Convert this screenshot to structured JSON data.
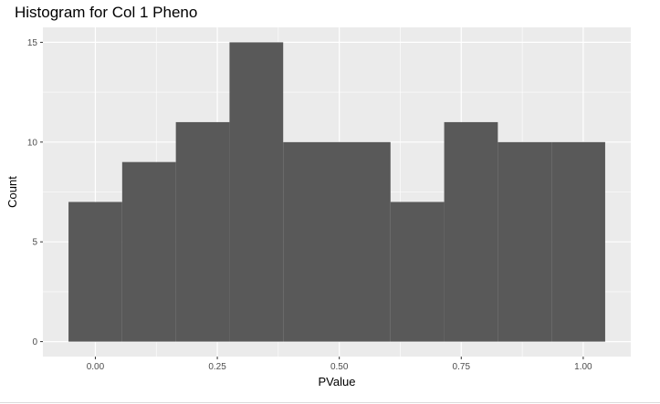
{
  "chart_data": {
    "type": "bar",
    "subtype": "histogram",
    "title": "Histogram for Col 1 Pheno",
    "xlabel": "PValue",
    "ylabel": "Count",
    "bins": [
      {
        "start": -0.055,
        "end": 0.055,
        "count": 7
      },
      {
        "start": 0.055,
        "end": 0.165,
        "count": 9
      },
      {
        "start": 0.165,
        "end": 0.275,
        "count": 11
      },
      {
        "start": 0.275,
        "end": 0.385,
        "count": 15
      },
      {
        "start": 0.385,
        "end": 0.495,
        "count": 10
      },
      {
        "start": 0.495,
        "end": 0.605,
        "count": 10
      },
      {
        "start": 0.605,
        "end": 0.715,
        "count": 7
      },
      {
        "start": 0.715,
        "end": 0.825,
        "count": 11
      },
      {
        "start": 0.825,
        "end": 0.935,
        "count": 10
      },
      {
        "start": 0.935,
        "end": 1.045,
        "count": 10
      }
    ],
    "xlim": [
      -0.1075,
      1.0975
    ],
    "ylim": [
      -0.75,
      15.75
    ],
    "x_ticks": [
      {
        "value": 0.0,
        "label": "0.00"
      },
      {
        "value": 0.25,
        "label": "0.25"
      },
      {
        "value": 0.5,
        "label": "0.50"
      },
      {
        "value": 0.75,
        "label": "0.75"
      },
      {
        "value": 1.0,
        "label": "1.00"
      }
    ],
    "y_ticks": [
      {
        "value": 0,
        "label": "0"
      },
      {
        "value": 5,
        "label": "5"
      },
      {
        "value": 10,
        "label": "10"
      },
      {
        "value": 15,
        "label": "15"
      }
    ],
    "grid": true,
    "panel_background": "#ebebeb",
    "grid_color": "#ffffff",
    "bar_color": "#595959"
  }
}
